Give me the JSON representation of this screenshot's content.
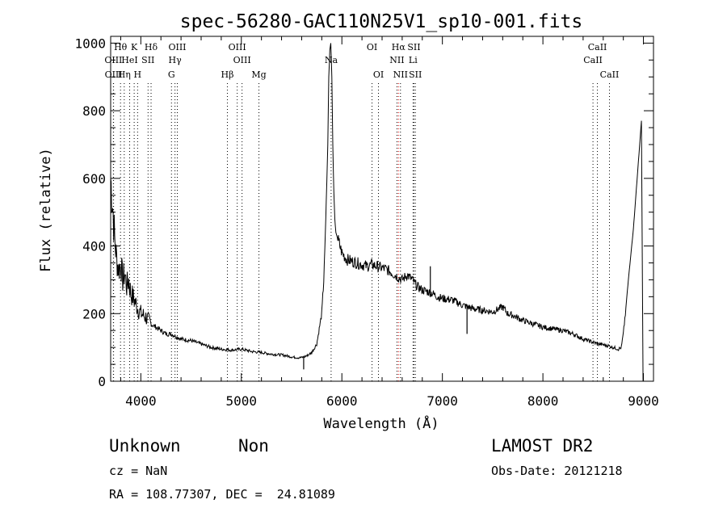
{
  "chart_data": {
    "type": "line",
    "title": "spec-56280-GAC110N25V1_sp10-001.fits",
    "xlabel": "Wavelength (Å)",
    "ylabel": "Flux (relative)",
    "xlim": [
      3700,
      9100
    ],
    "ylim": [
      0,
      1020
    ],
    "x_ticks": [
      4000,
      5000,
      6000,
      7000,
      8000,
      9000
    ],
    "y_ticks": [
      0,
      200,
      400,
      600,
      800,
      1000
    ],
    "grid": false,
    "series": [
      {
        "name": "",
        "color": "#000000",
        "x": [
          3700,
          3720,
          3740,
          3760,
          3780,
          3800,
          3820,
          3840,
          3860,
          3880,
          3900,
          3920,
          3950,
          3980,
          4000,
          4050,
          4100,
          4150,
          4200,
          4250,
          4300,
          4400,
          4500,
          4600,
          4700,
          4800,
          4900,
          5000,
          5100,
          5200,
          5300,
          5400,
          5500,
          5550,
          5600,
          5650,
          5700,
          5750,
          5800,
          5820,
          5840,
          5860,
          5870,
          5880,
          5890,
          5900,
          5910,
          5920,
          5930,
          5940,
          5960,
          5980,
          6000,
          6050,
          6100,
          6150,
          6200,
          6250,
          6300,
          6350,
          6400,
          6450,
          6500,
          6550,
          6600,
          6650,
          6700,
          6750,
          6800,
          6850,
          6900,
          6950,
          7000,
          7100,
          7200,
          7250,
          7300,
          7400,
          7500,
          7600,
          7650,
          7700,
          7800,
          7900,
          8000,
          8100,
          8200,
          8300,
          8400,
          8500,
          8550,
          8600,
          8650,
          8700,
          8750,
          8780,
          8800,
          8820,
          8850,
          8900,
          8950,
          8980
        ],
        "y": [
          600,
          520,
          420,
          360,
          330,
          350,
          300,
          320,
          280,
          300,
          260,
          250,
          230,
          210,
          200,
          190,
          170,
          160,
          150,
          140,
          140,
          125,
          120,
          110,
          100,
          95,
          92,
          95,
          88,
          85,
          80,
          78,
          72,
          70,
          70,
          75,
          85,
          110,
          200,
          300,
          480,
          700,
          900,
          980,
          1000,
          900,
          700,
          560,
          480,
          440,
          420,
          400,
          380,
          360,
          355,
          350,
          345,
          340,
          345,
          340,
          335,
          330,
          320,
          310,
          300,
          315,
          300,
          280,
          270,
          265,
          260,
          250,
          245,
          240,
          225,
          220,
          215,
          210,
          205,
          220,
          200,
          195,
          180,
          170,
          160,
          155,
          150,
          140,
          125,
          115,
          110,
          108,
          105,
          100,
          95,
          100,
          140,
          200,
          300,
          450,
          650,
          770
        ]
      }
    ],
    "spikes": [
      {
        "x": 5620,
        "y": 35
      },
      {
        "x": 6880,
        "y": 340
      },
      {
        "x": 7245,
        "y": 140
      }
    ],
    "lines": [
      {
        "label": "Hθ",
        "x": 3798,
        "row": 0,
        "color": "#000000"
      },
      {
        "label": "K",
        "x": 3934,
        "row": 0,
        "color": "#000000"
      },
      {
        "label": "Hδ",
        "x": 4102,
        "row": 0,
        "color": "#000000"
      },
      {
        "label": "OIII",
        "x": 4363,
        "row": 0,
        "color": "#000000"
      },
      {
        "label": "OIII",
        "x": 4959,
        "row": 0,
        "color": "#000000"
      },
      {
        "label": "OI",
        "x": 6300,
        "row": 0,
        "color": "#000000"
      },
      {
        "label": "Hα",
        "x": 6563,
        "row": 0,
        "color": "#ff0000"
      },
      {
        "label": "SII",
        "x": 6717,
        "row": 0,
        "color": "#000000"
      },
      {
        "label": "CaII",
        "x": 8542,
        "row": 0,
        "color": "#000000"
      },
      {
        "label": "OIII",
        "x": 3727,
        "row": 1,
        "color": "#000000"
      },
      {
        "label": "HeI",
        "x": 3889,
        "row": 1,
        "color": "#000000"
      },
      {
        "label": "SII",
        "x": 4072,
        "row": 1,
        "color": "#000000"
      },
      {
        "label": "Hγ",
        "x": 4340,
        "row": 1,
        "color": "#000000"
      },
      {
        "label": "OIII",
        "x": 5007,
        "row": 1,
        "color": "#000000"
      },
      {
        "label": "Na",
        "x": 5893,
        "row": 1,
        "color": "#000000"
      },
      {
        "label": "NII",
        "x": 6548,
        "row": 1,
        "color": "#000000"
      },
      {
        "label": "Li",
        "x": 6708,
        "row": 1,
        "color": "#000000"
      },
      {
        "label": "CaII",
        "x": 8498,
        "row": 1,
        "color": "#000000"
      },
      {
        "label": "OIII",
        "x": 3729,
        "row": 2,
        "color": "#000000"
      },
      {
        "label": "Hη",
        "x": 3835,
        "row": 2,
        "color": "#000000"
      },
      {
        "label": "H",
        "x": 3968,
        "row": 2,
        "color": "#000000"
      },
      {
        "label": "G",
        "x": 4305,
        "row": 2,
        "color": "#000000"
      },
      {
        "label": "Hβ",
        "x": 4861,
        "row": 2,
        "color": "#000000"
      },
      {
        "label": "Mg",
        "x": 5175,
        "row": 2,
        "color": "#000000"
      },
      {
        "label": "OI",
        "x": 6364,
        "row": 2,
        "color": "#000000"
      },
      {
        "label": "NII",
        "x": 6583,
        "row": 2,
        "color": "#000000"
      },
      {
        "label": "SII",
        "x": 6731,
        "row": 2,
        "color": "#000000"
      },
      {
        "label": "CaII",
        "x": 8662,
        "row": 2,
        "color": "#000000"
      }
    ]
  },
  "info": {
    "class": "Unknown",
    "subclass": "Non",
    "survey": "LAMOST DR2",
    "cz": "cz = NaN",
    "obs_date": "Obs-Date: 20121218",
    "coords": "RA = 108.77307, DEC =  24.81089"
  }
}
